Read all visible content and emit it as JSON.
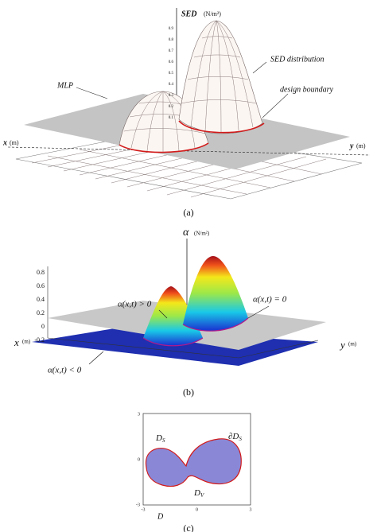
{
  "panel_a": {
    "caption": "(a)",
    "axis_label": "SED",
    "axis_unit": "(N/m²)",
    "ticks": [
      "0.9",
      "0.8",
      "0.7",
      "0.6",
      "0.5",
      "0.4",
      "0.3",
      "0.2",
      "0.1"
    ],
    "sed_label": "SED distribution",
    "mlp_label": "MLP",
    "boundary_label": "design boundary",
    "x_label": "x",
    "x_unit": "(m)",
    "y_label": "y",
    "y_unit": "(m)"
  },
  "panel_b": {
    "caption": "(b)",
    "axis_label": "α",
    "axis_unit": "(N/m²)",
    "ticks": [
      "0.8",
      "0.6",
      "0.4",
      "0.2",
      "0",
      "-0.2"
    ],
    "positive_label": "α(x,t) > 0",
    "zero_label": "α(x,t) = 0",
    "negative_label": "α(x,t) < 0",
    "x_label": "x",
    "x_unit": "(m)",
    "y_label": "y",
    "y_unit": "(m)"
  },
  "panel_c": {
    "caption": "(c)",
    "left_ticks": [
      "3",
      "0",
      "-3"
    ],
    "bottom_ticks": [
      "-3",
      "0",
      "3"
    ],
    "boundary_label": "∂D",
    "boundary_sub": "S",
    "solid_label": "D",
    "solid_sub": "S",
    "void_label": "D",
    "void_sub": "V",
    "domain_label": "D"
  }
}
